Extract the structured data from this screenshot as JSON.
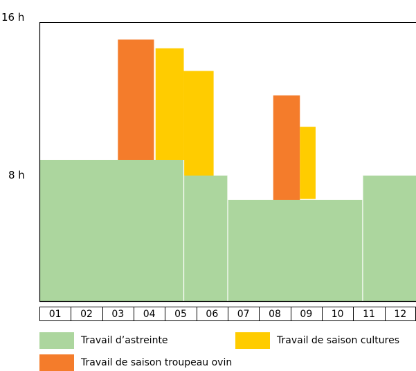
{
  "chart_data": {
    "type": "bar",
    "ylabel_ticks": [
      "8 h",
      "16 h"
    ],
    "ylim": [
      0,
      16
    ],
    "categories": [
      "01",
      "02",
      "03",
      "04",
      "05",
      "06",
      "07",
      "08",
      "09",
      "10",
      "11",
      "12"
    ],
    "series": [
      {
        "name": "Travail d’astreinte",
        "color": "#acd69e",
        "segments": [
          {
            "from": 0,
            "to": 4.6,
            "value": 8.1
          },
          {
            "from": 4.6,
            "to": 6.0,
            "value": 7.2
          },
          {
            "from": 6.0,
            "to": 10.3,
            "value": 5.8
          },
          {
            "from": 10.3,
            "to": 12.0,
            "value": 7.2
          }
        ]
      },
      {
        "name": "Travail de saison troupeau ovin",
        "color": "#f47c2b",
        "bars": [
          {
            "from": 2.5,
            "to": 3.65,
            "bottom": 8.1,
            "top": 15.0
          },
          {
            "from": 7.45,
            "to": 8.3,
            "bottom": 5.8,
            "top": 11.8
          }
        ]
      },
      {
        "name": "Travail de saison cultures",
        "color": "#ffcc00",
        "bars": [
          {
            "from": 3.7,
            "to": 4.6,
            "bottom": 8.1,
            "top": 14.5
          },
          {
            "from": 4.6,
            "to": 5.55,
            "bottom": 7.2,
            "top": 13.2
          },
          {
            "from": 8.3,
            "to": 8.8,
            "bottom": 5.9,
            "top": 10.0
          }
        ]
      }
    ]
  },
  "legend": {
    "astreinte": "Travail d’astreinte",
    "cultures": "Travail de saison cultures",
    "ovin": "Travail de saison troupeau ovin"
  },
  "colors": {
    "astreinte": "#acd69e",
    "ovin": "#f47c2b",
    "cultures": "#ffcc00"
  }
}
